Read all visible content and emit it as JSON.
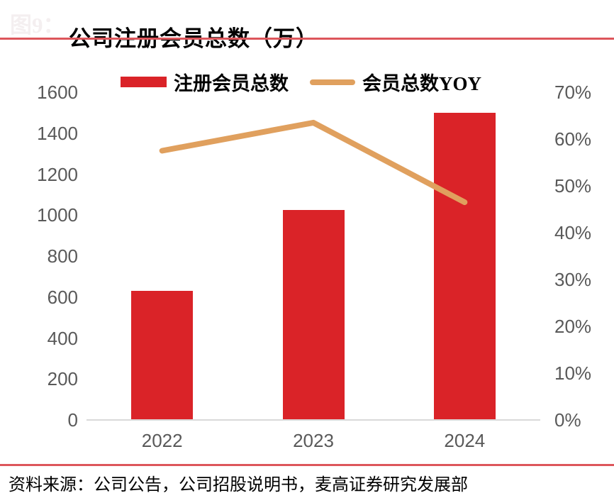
{
  "figure": {
    "label": "图9：",
    "title": "公司注册会员总数（万）",
    "source": "资料来源：公司公告，公司招股说明书，麦高证券研究发展部"
  },
  "colors": {
    "bar_red": "#da2328",
    "line_orange": "#e0a05e",
    "rule_red": "#dd565b",
    "axis_text": "#595959",
    "axis_line": "#d9d9d9",
    "faint_label": "#f4eff0"
  },
  "chart_data": {
    "type": "bar",
    "title": "公司注册会员总数（万）",
    "categories": [
      "2022",
      "2023",
      "2024"
    ],
    "series": [
      {
        "name": "注册会员总数",
        "type": "bar",
        "axis": "left",
        "color": "#da2328",
        "values": [
          630,
          1025,
          1500
        ]
      },
      {
        "name": "会员总数YOY",
        "type": "line",
        "axis": "right",
        "color": "#e0a05e",
        "unit": "%",
        "values": [
          57.5,
          63.5,
          46.5
        ]
      }
    ],
    "axes": {
      "left": {
        "min": 0,
        "max": 1600,
        "step": 200
      },
      "right": {
        "min": 0,
        "max": 70,
        "step": 10,
        "format": "percent"
      }
    },
    "grid": false,
    "legend_position": "top"
  }
}
